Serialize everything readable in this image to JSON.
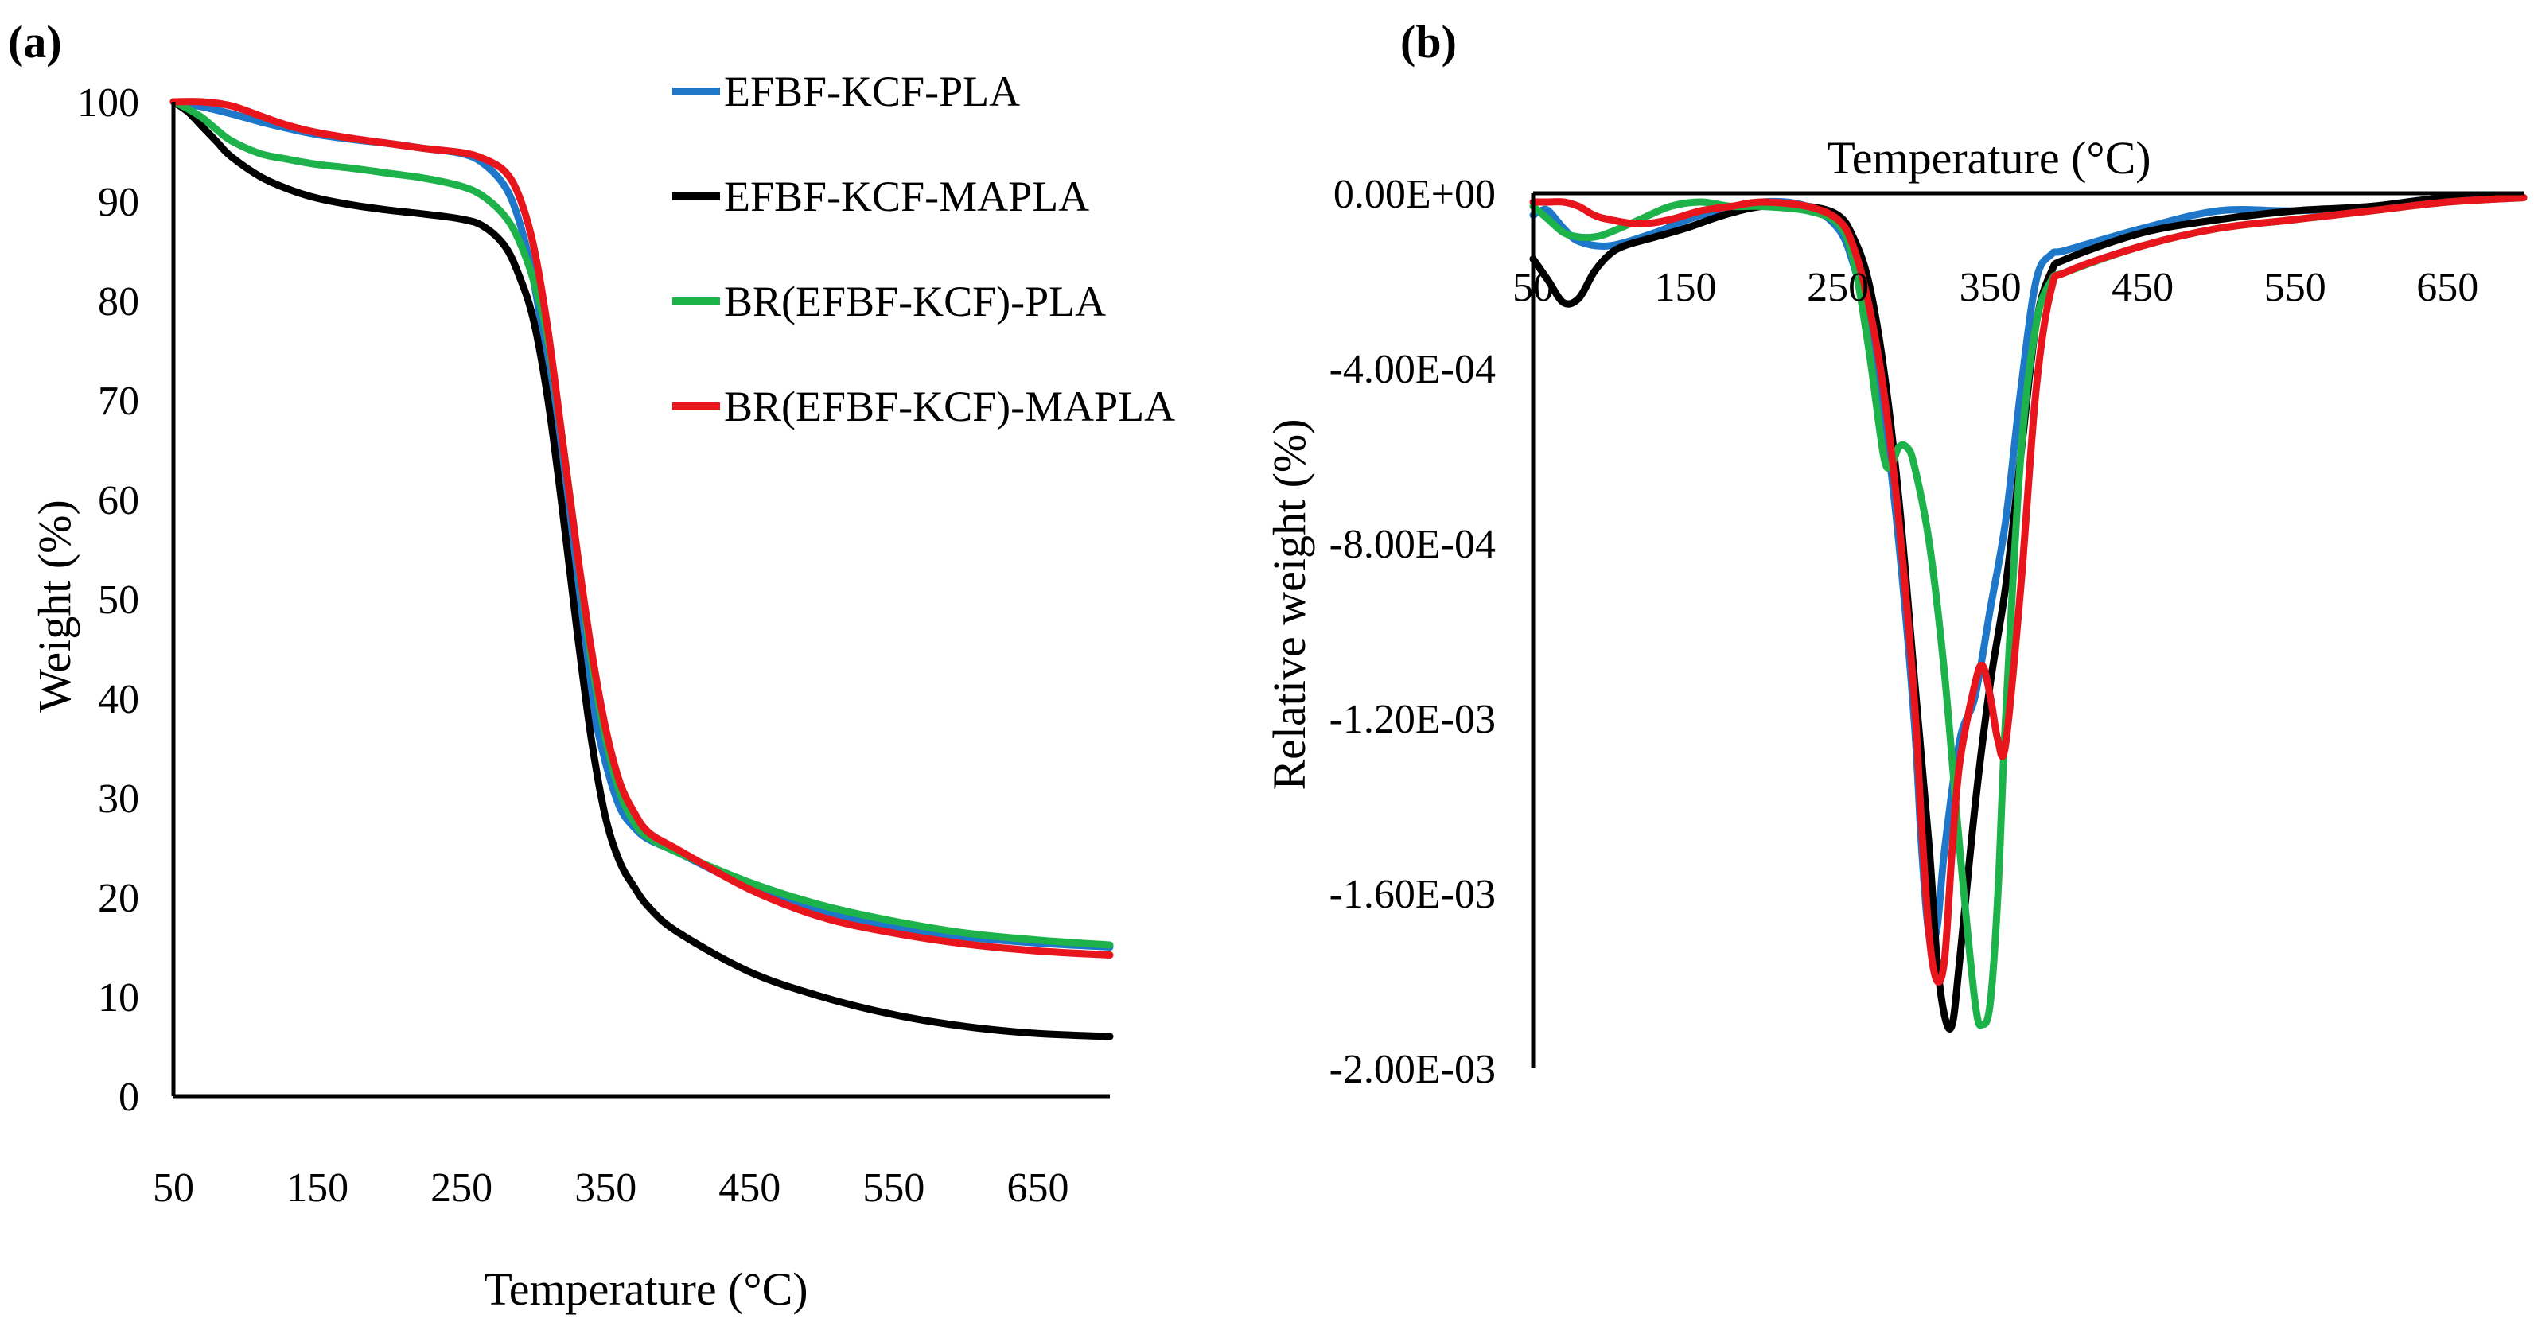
{
  "chart_data": [
    {
      "panel": "(a)",
      "type": "line",
      "title": "",
      "xlabel": "Temperature (°C)",
      "ylabel": "Weight (%)",
      "xlim": [
        50,
        700
      ],
      "ylim": [
        0,
        100
      ],
      "xticks": [
        50,
        150,
        250,
        350,
        450,
        550,
        650
      ],
      "yticks": [
        0,
        10,
        20,
        30,
        40,
        50,
        60,
        70,
        80,
        90,
        100
      ],
      "legend": {
        "position": "top-right"
      },
      "series": [
        {
          "name": "EFBF-KCF-PLA",
          "color": "#1f77c9",
          "x": [
            50,
            70,
            90,
            110,
            130,
            150,
            175,
            200,
            225,
            250,
            265,
            280,
            290,
            300,
            310,
            320,
            330,
            340,
            350,
            360,
            370,
            380,
            400,
            450,
            500,
            550,
            600,
            650,
            700
          ],
          "y": [
            100,
            99.5,
            98.8,
            98,
            97.3,
            96.7,
            96.2,
            95.8,
            95.3,
            94.8,
            93.8,
            91.5,
            88,
            82,
            73,
            62,
            50,
            40,
            33.5,
            29,
            27,
            25.8,
            24.5,
            21,
            18.5,
            17,
            16,
            15.4,
            15
          ]
        },
        {
          "name": "EFBF-KCF-MAPLA",
          "color": "#000000",
          "x": [
            50,
            60,
            70,
            80,
            90,
            110,
            130,
            150,
            175,
            200,
            225,
            250,
            265,
            280,
            290,
            300,
            310,
            320,
            330,
            340,
            350,
            360,
            370,
            380,
            400,
            450,
            500,
            550,
            600,
            650,
            700
          ],
          "y": [
            100,
            99,
            97.5,
            96,
            94.5,
            92.5,
            91.2,
            90.3,
            89.6,
            89.1,
            88.7,
            88.2,
            87.5,
            85.5,
            82.5,
            78,
            70,
            59,
            47,
            36,
            28,
            23.5,
            21,
            19,
            16.5,
            12.5,
            10,
            8.2,
            7,
            6.3,
            6
          ]
        },
        {
          "name": "BR(EFBF-KCF)-PLA",
          "color": "#1db34a",
          "x": [
            50,
            60,
            70,
            80,
            90,
            110,
            130,
            150,
            175,
            200,
            225,
            250,
            265,
            280,
            290,
            300,
            310,
            320,
            330,
            340,
            350,
            360,
            370,
            380,
            400,
            450,
            500,
            550,
            600,
            650,
            700
          ],
          "y": [
            100,
            99.3,
            98.4,
            97.2,
            96.1,
            94.8,
            94.2,
            93.7,
            93.3,
            92.8,
            92.3,
            91.5,
            90.5,
            88.5,
            86,
            82,
            76,
            66,
            55,
            44,
            36,
            30.5,
            27.5,
            26,
            24.5,
            21.5,
            19.2,
            17.6,
            16.4,
            15.7,
            15.2
          ]
        },
        {
          "name": "BR(EFBF-KCF)-MAPLA",
          "color": "#e8161c",
          "x": [
            50,
            70,
            90,
            110,
            130,
            150,
            175,
            200,
            225,
            250,
            265,
            280,
            290,
            300,
            310,
            320,
            330,
            340,
            350,
            360,
            370,
            380,
            400,
            450,
            500,
            550,
            600,
            650,
            700
          ],
          "y": [
            100,
            100,
            99.6,
            98.6,
            97.6,
            96.9,
            96.3,
            95.8,
            95.3,
            94.9,
            94.3,
            93,
            90.5,
            85.5,
            77,
            66,
            55,
            45,
            37,
            31.5,
            28.5,
            26.5,
            24.8,
            20.8,
            18,
            16.4,
            15.3,
            14.6,
            14.2
          ]
        }
      ]
    },
    {
      "panel": "(b)",
      "type": "line",
      "title": "",
      "xlabel": "Temperature (°C)",
      "ylabel": "Relative weight (%)",
      "xlim": [
        50,
        700
      ],
      "ylim": [
        -0.002,
        0
      ],
      "xticks": [
        50,
        150,
        250,
        350,
        450,
        550,
        650
      ],
      "yticks": [
        0,
        -0.0004,
        -0.0008,
        -0.0012,
        -0.0016,
        -0.002
      ],
      "xtick_labels": [
        "50",
        "150",
        "250",
        "350",
        "450",
        "550",
        "650"
      ],
      "ytick_labels": [
        "0.00E+00",
        "-4.00E-04",
        "-8.00E-04",
        "-1.20E-03",
        "-1.60E-03",
        "-2.00E-03"
      ],
      "series": [
        {
          "name": "EFBF-KCF-PLA",
          "color": "#1f77c9",
          "x": [
            50,
            55,
            60,
            70,
            80,
            100,
            130,
            160,
            200,
            230,
            250,
            260,
            270,
            280,
            290,
            300,
            305,
            310,
            315,
            320,
            330,
            340,
            350,
            360,
            370,
            380,
            390,
            400,
            450,
            500,
            550,
            600,
            650,
            700
          ],
          "y": [
            -5e-05,
            -4e-05,
            -4e-05,
            -8e-05,
            -0.00011,
            -0.00012,
            -9e-05,
            -5e-05,
            -2e-05,
            -3e-05,
            -8e-05,
            -0.00016,
            -0.0003,
            -0.0005,
            -0.0008,
            -0.0012,
            -0.0015,
            -0.0017,
            -0.00168,
            -0.0015,
            -0.00125,
            -0.00115,
            -0.00095,
            -0.00075,
            -0.00045,
            -0.0002,
            -0.00014,
            -0.00013,
            -8e-05,
            -4e-05,
            -4e-05,
            -3e-05,
            -1e-05,
            -1e-05
          ]
        },
        {
          "name": "EFBF-KCF-MAPLA",
          "color": "#000000",
          "x": [
            50,
            60,
            70,
            80,
            90,
            100,
            110,
            130,
            150,
            175,
            200,
            230,
            250,
            260,
            270,
            280,
            290,
            300,
            310,
            315,
            320,
            325,
            330,
            340,
            350,
            360,
            370,
            380,
            390,
            400,
            450,
            500,
            550,
            600,
            650,
            700
          ],
          "y": [
            -0.00015,
            -0.0002,
            -0.00025,
            -0.00024,
            -0.00018,
            -0.00014,
            -0.00012,
            -0.0001,
            -8e-05,
            -5e-05,
            -3e-05,
            -3e-05,
            -5e-05,
            -0.0001,
            -0.0002,
            -0.0004,
            -0.0007,
            -0.0011,
            -0.0015,
            -0.00175,
            -0.00188,
            -0.0019,
            -0.00175,
            -0.0014,
            -0.00112,
            -0.0009,
            -0.0006,
            -0.0003,
            -0.00018,
            -0.00015,
            -9e-05,
            -6e-05,
            -4e-05,
            -3e-05,
            -1e-05,
            -1e-05
          ]
        },
        {
          "name": "BR(EFBF-KCF)-PLA",
          "color": "#1db34a",
          "x": [
            50,
            60,
            70,
            80,
            90,
            100,
            120,
            140,
            160,
            180,
            200,
            230,
            250,
            260,
            270,
            280,
            285,
            290,
            295,
            300,
            310,
            320,
            330,
            340,
            345,
            350,
            355,
            360,
            370,
            380,
            390,
            400,
            450,
            500,
            550,
            600,
            650,
            700
          ],
          "y": [
            -3e-05,
            -6e-05,
            -9e-05,
            -0.0001,
            -0.0001,
            -9e-05,
            -6e-05,
            -3e-05,
            -2e-05,
            -3e-05,
            -3e-05,
            -4e-05,
            -7e-05,
            -0.00015,
            -0.00035,
            -0.0006,
            -0.00062,
            -0.00058,
            -0.00058,
            -0.00062,
            -0.0008,
            -0.0011,
            -0.0015,
            -0.00185,
            -0.0019,
            -0.00185,
            -0.0016,
            -0.0012,
            -0.0006,
            -0.0003,
            -0.0002,
            -0.00018,
            -0.00012,
            -8e-05,
            -6e-05,
            -4e-05,
            -2e-05,
            -1e-05
          ]
        },
        {
          "name": "BR(EFBF-KCF)-MAPLA",
          "color": "#e8161c",
          "x": [
            50,
            60,
            70,
            80,
            90,
            100,
            120,
            140,
            160,
            180,
            200,
            230,
            250,
            260,
            270,
            280,
            290,
            300,
            305,
            310,
            315,
            320,
            325,
            330,
            340,
            345,
            350,
            355,
            360,
            370,
            380,
            390,
            400,
            450,
            500,
            550,
            600,
            650,
            700
          ],
          "y": [
            -2e-05,
            -2e-05,
            -2e-05,
            -3e-05,
            -5e-05,
            -6e-05,
            -7e-05,
            -6e-05,
            -4e-05,
            -3e-05,
            -2e-05,
            -3e-05,
            -6e-05,
            -0.00012,
            -0.00025,
            -0.00045,
            -0.00075,
            -0.00115,
            -0.00145,
            -0.0017,
            -0.0018,
            -0.00175,
            -0.0015,
            -0.0013,
            -0.00112,
            -0.00108,
            -0.00115,
            -0.00125,
            -0.00126,
            -0.0009,
            -0.00045,
            -0.00022,
            -0.00018,
            -0.00012,
            -8e-05,
            -6e-05,
            -4e-05,
            -2e-05,
            -1e-05
          ]
        }
      ]
    }
  ]
}
